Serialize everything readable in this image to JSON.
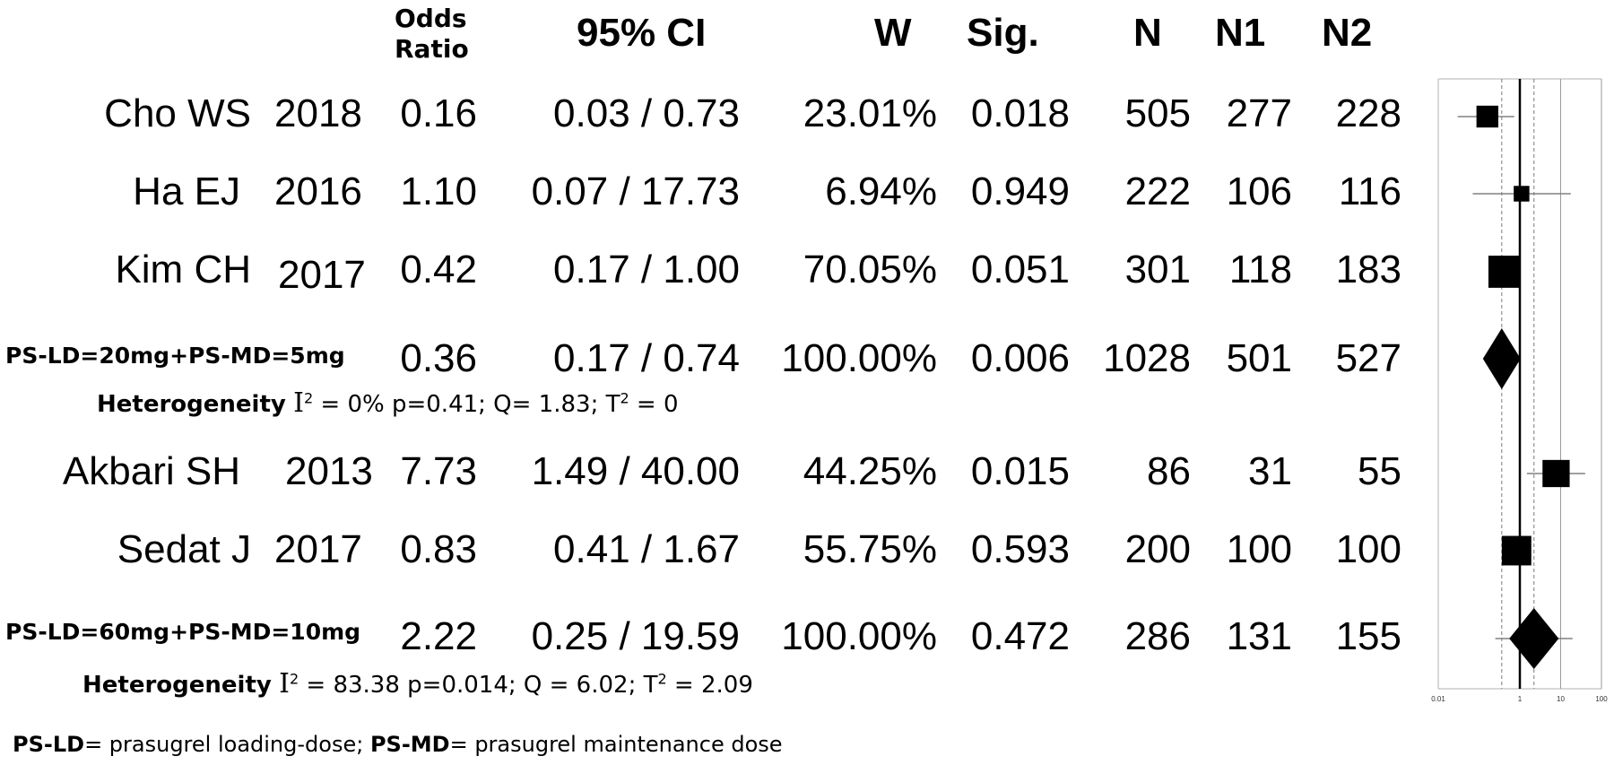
{
  "headers": {
    "or_line1": "Odds",
    "or_line2": "Ratio",
    "ci": "95% CI",
    "w": "W",
    "sig": "Sig.",
    "n": "N",
    "n1": "N1",
    "n2": "N2"
  },
  "rows": [
    {
      "study": "Cho WS",
      "year": "2018",
      "or": "0.16",
      "ci": "0.03 / 0.73",
      "w": "23.01%",
      "sig": "0.018",
      "n": "505",
      "n1": "277",
      "n2": "228"
    },
    {
      "study": "Ha EJ",
      "year": "2016",
      "or": "1.10",
      "ci": "0.07 / 17.73",
      "w": "6.94%",
      "sig": "0.949",
      "n": "222",
      "n1": "106",
      "n2": "116"
    },
    {
      "study": "Kim CH",
      "year": "2017",
      "or": "0.42",
      "ci": "0.17 / 1.00",
      "w": "70.05%",
      "sig": "0.051",
      "n": "301",
      "n1": "118",
      "n2": "183"
    },
    {
      "study": "PS-LD=20mg+PS-MD=5mg",
      "year": "",
      "or": "0.36",
      "ci": "0.17 / 0.74",
      "w": "100.00%",
      "sig": "0.006",
      "n": "1028",
      "n1": "501",
      "n2": "527"
    },
    {
      "study": "Akbari SH",
      "year": "2013",
      "or": "7.73",
      "ci": "1.49 / 40.00",
      "w": "44.25%",
      "sig": "0.015",
      "n": "86",
      "n1": "31",
      "n2": "55"
    },
    {
      "study": "Sedat J",
      "year": "2017",
      "or": "0.83",
      "ci": "0.41 / 1.67",
      "w": "55.75%",
      "sig": "0.593",
      "n": "200",
      "n1": "100",
      "n2": "100"
    },
    {
      "study": "PS-LD=60mg+PS-MD=10mg",
      "year": "",
      "or": "2.22",
      "ci": "0.25 / 19.59",
      "w": "100.00%",
      "sig": "0.472",
      "n": "286",
      "n1": "131",
      "n2": "155"
    }
  ],
  "heterogeneity": [
    {
      "label": "Heterogeneity",
      "I": "I",
      "sup": "2",
      "text1": " = 0% p=0.41; Q= 1.83; T",
      "sup2": "2",
      "text2": " = 0"
    },
    {
      "label": "Heterogeneity",
      "I": "I",
      "sup": "2",
      "text1": " = 83.38 p=0.014; Q = 6.02; T",
      "sup2": "2",
      "text2": " = 2.09"
    }
  ],
  "footnote": {
    "b1": "PS-LD",
    "t1": "= prasugrel loading-dose; ",
    "b2": "PS-MD",
    "t2": "= prasugrel maintenance dose"
  },
  "chart_data": {
    "type": "forest",
    "x_scale": "log",
    "xlim": [
      0.01,
      100
    ],
    "x_ticks": [
      "0.01",
      "1",
      "10",
      "100"
    ],
    "reference_lines": [
      1,
      0.36,
      2.22
    ],
    "points": [
      {
        "label": "Cho WS 2018",
        "or": 0.16,
        "lo": 0.03,
        "hi": 0.73,
        "weight": 23.01,
        "kind": "study"
      },
      {
        "label": "Ha EJ 2016",
        "or": 1.1,
        "lo": 0.07,
        "hi": 17.73,
        "weight": 6.94,
        "kind": "study"
      },
      {
        "label": "Kim CH 2017",
        "or": 0.42,
        "lo": 0.17,
        "hi": 1.0,
        "weight": 70.05,
        "kind": "study"
      },
      {
        "label": "PS-LD=20mg+PS-MD=5mg",
        "or": 0.36,
        "lo": 0.17,
        "hi": 0.74,
        "weight": 100.0,
        "kind": "pooled"
      },
      {
        "label": "Akbari SH 2013",
        "or": 7.73,
        "lo": 1.49,
        "hi": 40.0,
        "weight": 44.25,
        "kind": "study"
      },
      {
        "label": "Sedat J 2017",
        "or": 0.83,
        "lo": 0.41,
        "hi": 1.67,
        "weight": 55.75,
        "kind": "study"
      },
      {
        "label": "PS-LD=60mg+PS-MD=10mg",
        "or": 2.22,
        "lo": 0.25,
        "hi": 19.59,
        "weight": 100.0,
        "kind": "pooled"
      }
    ]
  }
}
